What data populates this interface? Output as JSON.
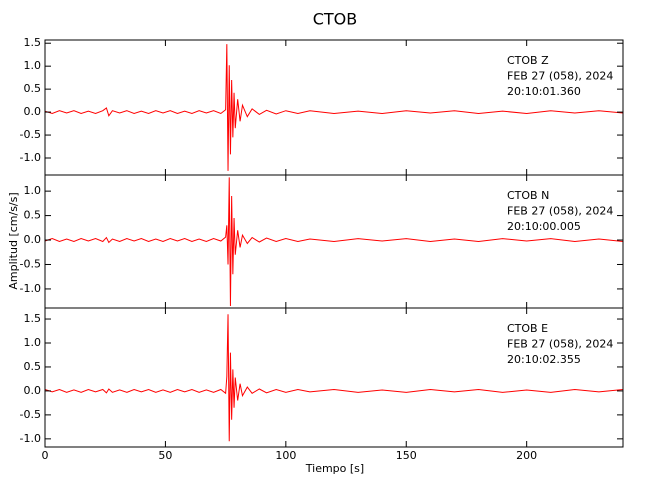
{
  "chart_data": {
    "type": "line",
    "title": "CTOB",
    "xlabel": "Tiempo [s]",
    "ylabel": "Amplitud [cm/s/s]",
    "xlim": [
      0,
      240
    ],
    "xticks": [
      0,
      50,
      100,
      150,
      200
    ],
    "grid": false,
    "panels": [
      {
        "annotation": [
          "CTOB   Z",
          "FEB 27 (058), 2024",
          "20:10:01.360"
        ],
        "ylim": [
          -1.37,
          1.57
        ],
        "yticks": [
          {
            "value": -1,
            "label": "-1.0"
          },
          {
            "value": -0.5,
            "label": "-0.5"
          },
          {
            "value": 0,
            "label": "0.0"
          },
          {
            "value": 0.5,
            "label": "0.5"
          },
          {
            "value": 1,
            "label": "1.0"
          },
          {
            "value": 1.5,
            "label": "1.5"
          }
        ],
        "series": [
          {
            "color": "#ff0000",
            "x": [
              0,
              3,
              6,
              9,
              12,
              15,
              18,
              21,
              24,
              25.5,
              26.5,
              28,
              31,
              34,
              37,
              40,
              43,
              46,
              49,
              52,
              55,
              58,
              61,
              64,
              67,
              70,
              73,
              75,
              75.5,
              76,
              76.5,
              77,
              77.5,
              78,
              78.5,
              79,
              80,
              81,
              82,
              84,
              86,
              89,
              92,
              96,
              100,
              105,
              110,
              120,
              130,
              140,
              150,
              160,
              170,
              180,
              190,
              200,
              210,
              220,
              230,
              240
            ],
            "values": [
              0.02,
              -0.03,
              0.03,
              -0.02,
              0.03,
              -0.03,
              0.02,
              -0.03,
              0.03,
              0.09,
              -0.08,
              0.03,
              -0.02,
              0.03,
              -0.03,
              0.02,
              -0.03,
              0.03,
              -0.02,
              0.03,
              -0.03,
              0.02,
              -0.03,
              0.03,
              -0.02,
              0.03,
              -0.03,
              0.05,
              1.48,
              -1.28,
              1.02,
              -0.92,
              0.7,
              -0.55,
              0.42,
              -0.35,
              0.28,
              -0.2,
              0.15,
              -0.1,
              0.07,
              -0.05,
              0.04,
              -0.04,
              0.03,
              -0.03,
              0.03,
              -0.03,
              0.02,
              -0.03,
              0.03,
              -0.02,
              0.03,
              -0.03,
              0.02,
              -0.03,
              0.03,
              -0.02,
              0.03,
              -0.02
            ]
          }
        ]
      },
      {
        "annotation": [
          "CTOB   N",
          "FEB 27 (058), 2024",
          "20:10:00.005"
        ],
        "ylim": [
          -1.39,
          1.33
        ],
        "yticks": [
          {
            "value": -1,
            "label": "-1.0"
          },
          {
            "value": -0.5,
            "label": "-0.5"
          },
          {
            "value": 0,
            "label": "0.0"
          },
          {
            "value": 0.5,
            "label": "0.5"
          },
          {
            "value": 1,
            "label": "1.0"
          }
        ],
        "series": [
          {
            "color": "#ff0000",
            "x": [
              0,
              3,
              6,
              9,
              12,
              15,
              18,
              21,
              24,
              25.5,
              26.5,
              28,
              31,
              34,
              37,
              40,
              43,
              46,
              49,
              52,
              55,
              58,
              61,
              64,
              67,
              70,
              73,
              75,
              75.5,
              76,
              76.5,
              77,
              77.5,
              78,
              78.5,
              79,
              80,
              81,
              82,
              84,
              86,
              89,
              92,
              96,
              100,
              105,
              110,
              120,
              130,
              140,
              150,
              160,
              170,
              180,
              190,
              200,
              210,
              220,
              230,
              240
            ],
            "values": [
              -0.02,
              0.03,
              -0.03,
              0.02,
              -0.03,
              0.03,
              -0.02,
              0.03,
              -0.03,
              0.05,
              -0.05,
              0.02,
              -0.03,
              0.03,
              -0.02,
              0.03,
              -0.03,
              0.02,
              -0.03,
              0.03,
              -0.02,
              0.03,
              -0.03,
              0.02,
              -0.03,
              0.03,
              -0.02,
              0.06,
              0.3,
              -0.5,
              1.28,
              -1.35,
              0.9,
              -0.7,
              0.45,
              -0.3,
              0.2,
              -0.15,
              0.1,
              -0.07,
              0.05,
              -0.04,
              0.04,
              -0.03,
              0.03,
              -0.03,
              0.02,
              -0.03,
              0.03,
              -0.02,
              0.03,
              -0.03,
              0.02,
              -0.03,
              0.03,
              -0.02,
              0.03,
              -0.03,
              0.02,
              -0.03
            ]
          }
        ]
      },
      {
        "annotation": [
          "CTOB   E",
          "FEB 27 (058), 2024",
          "20:10:02.355"
        ],
        "ylim": [
          -1.17,
          1.73
        ],
        "yticks": [
          {
            "value": -1,
            "label": "-1.0"
          },
          {
            "value": -0.5,
            "label": "-0.5"
          },
          {
            "value": 0,
            "label": "0.0"
          },
          {
            "value": 0.5,
            "label": "0.5"
          },
          {
            "value": 1,
            "label": "1.0"
          },
          {
            "value": 1.5,
            "label": "1.5"
          }
        ],
        "series": [
          {
            "color": "#ff0000",
            "x": [
              0,
              3,
              6,
              9,
              12,
              15,
              18,
              21,
              24,
              25.5,
              26.5,
              28,
              31,
              34,
              37,
              40,
              43,
              46,
              49,
              52,
              55,
              58,
              61,
              64,
              67,
              70,
              73,
              75,
              75.5,
              76,
              76.5,
              77,
              77.5,
              78,
              78.5,
              79,
              80,
              81,
              82,
              84,
              86,
              89,
              92,
              96,
              100,
              105,
              110,
              120,
              130,
              140,
              150,
              160,
              170,
              180,
              190,
              200,
              210,
              220,
              230,
              240
            ],
            "values": [
              0.03,
              -0.02,
              0.03,
              -0.03,
              0.02,
              -0.03,
              0.03,
              -0.02,
              0.03,
              -0.04,
              0.04,
              -0.03,
              0.02,
              -0.03,
              0.03,
              -0.02,
              0.03,
              -0.03,
              0.02,
              -0.03,
              0.03,
              -0.02,
              0.03,
              -0.03,
              0.02,
              -0.03,
              0.03,
              -0.05,
              0.3,
              1.6,
              -1.05,
              0.8,
              -0.6,
              0.45,
              -0.35,
              0.28,
              -0.2,
              0.15,
              -0.1,
              0.08,
              -0.05,
              0.04,
              -0.04,
              0.03,
              -0.03,
              0.03,
              -0.02,
              0.03,
              -0.03,
              0.02,
              -0.03,
              0.03,
              -0.02,
              0.03,
              -0.03,
              0.02,
              -0.03,
              0.03,
              -0.02,
              0.03
            ]
          }
        ]
      }
    ]
  }
}
